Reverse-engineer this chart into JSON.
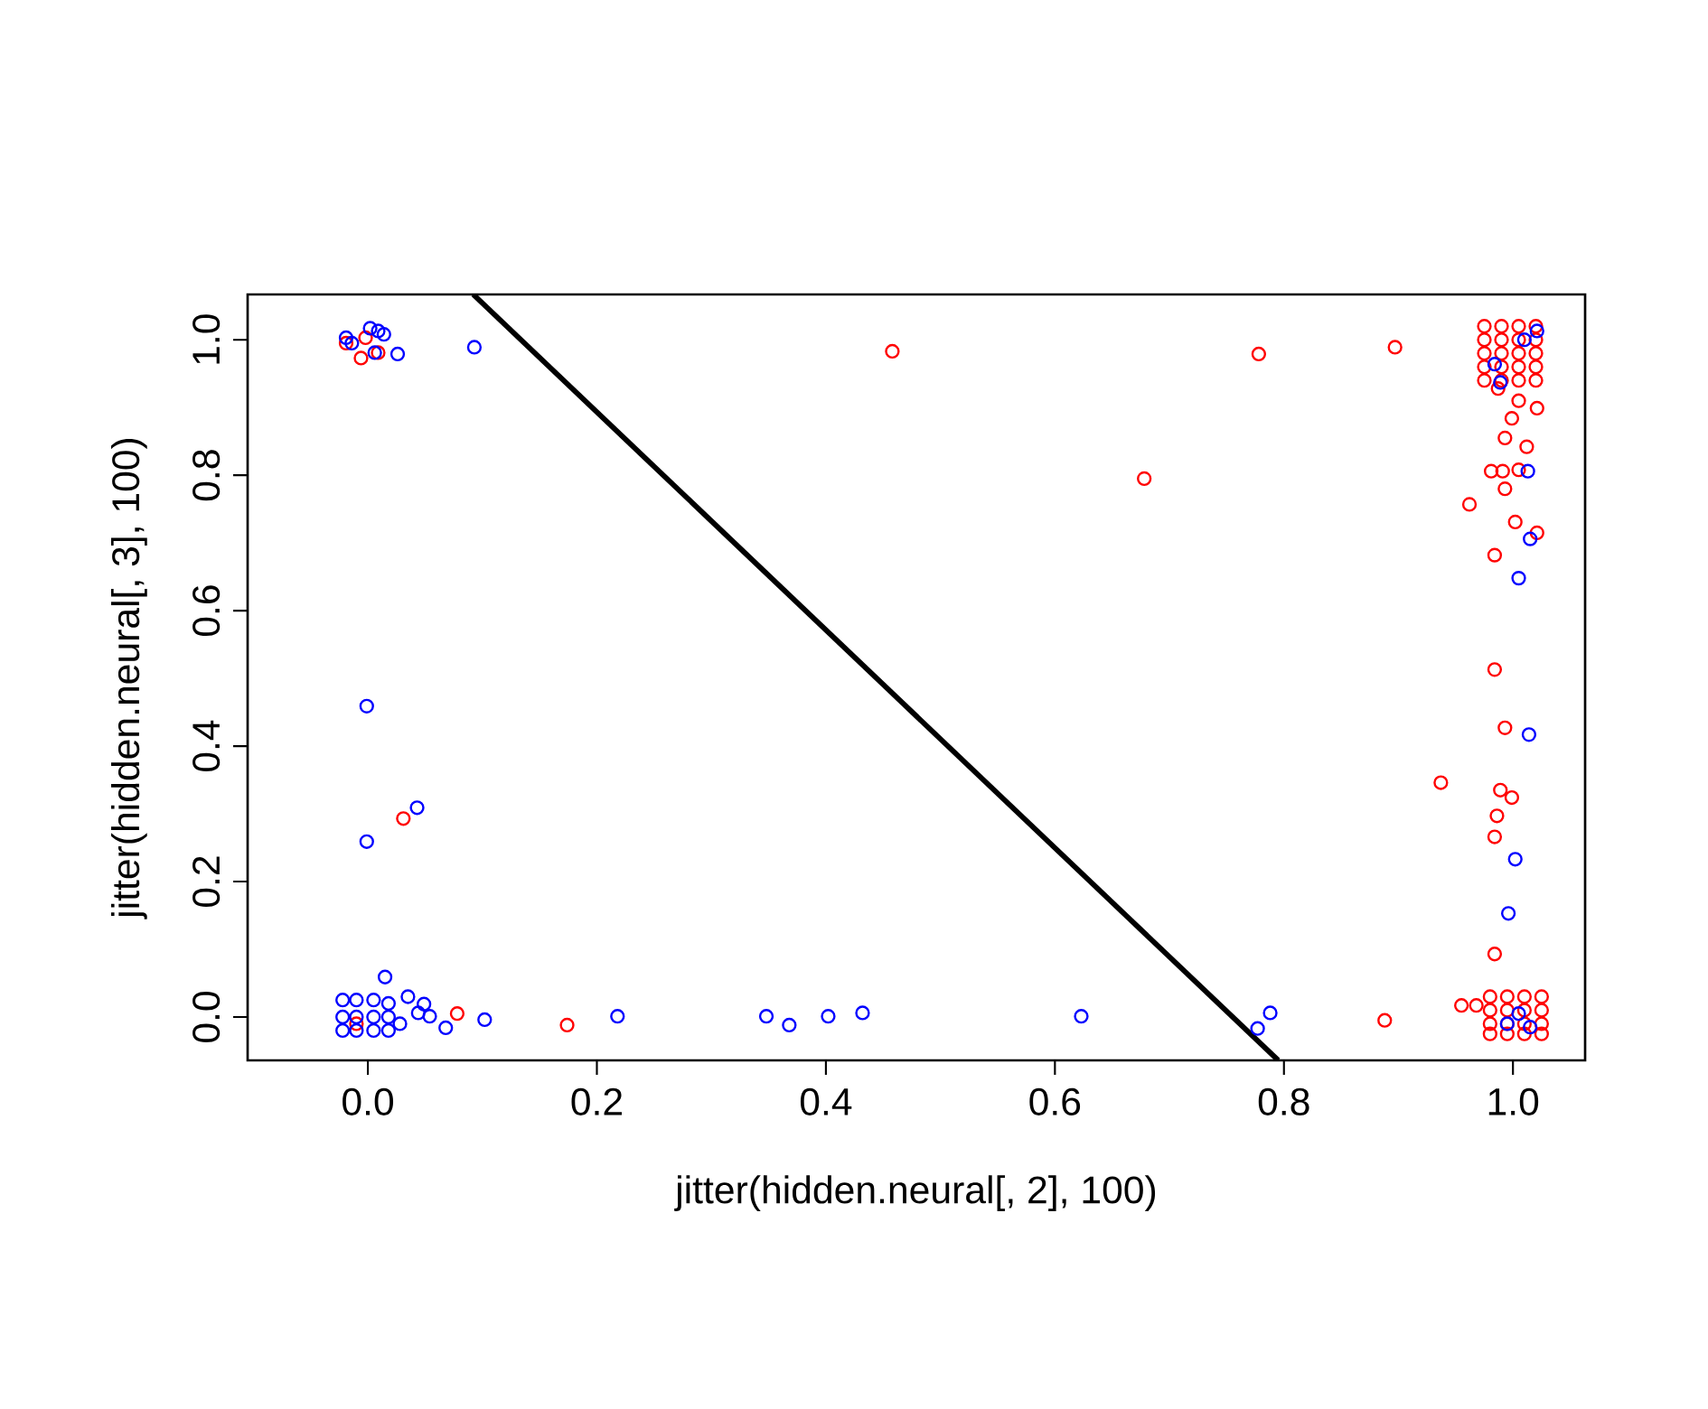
{
  "chart_data": {
    "type": "scatter",
    "xlabel": "jitter(hidden.neural[, 2], 100)",
    "ylabel": "jitter(hidden.neural[, 3], 100)",
    "xlim": [
      -0.105,
      1.063
    ],
    "ylim": [
      -0.064,
      1.067
    ],
    "xticks": [
      {
        "value": 0,
        "label": "0.0"
      },
      {
        "value": 0.2,
        "label": "0.2"
      },
      {
        "value": 0.4,
        "label": "0.4"
      },
      {
        "value": 0.6,
        "label": "0.6"
      },
      {
        "value": 0.8,
        "label": "0.8"
      },
      {
        "value": 1,
        "label": "1.0"
      }
    ],
    "yticks": [
      {
        "value": 0,
        "label": "0.0"
      },
      {
        "value": 0.2,
        "label": "0.2"
      },
      {
        "value": 0.4,
        "label": "0.4"
      },
      {
        "value": 0.6,
        "label": "0.6"
      },
      {
        "value": 0.8,
        "label": "0.8"
      },
      {
        "value": 1,
        "label": "1.0"
      }
    ],
    "marker": "circle",
    "series": [
      {
        "color": "#ff0000",
        "x": [
          -0.019,
          -0.006,
          0.009,
          -0.002,
          0.031,
          0.078,
          -0.01,
          0.174,
          0.458,
          0.778,
          0.678,
          0.897,
          0.888,
          0.975,
          0.99,
          1.005,
          1.02,
          0.975,
          0.99,
          1.005,
          1.02,
          0.975,
          0.99,
          1.005,
          1.02,
          0.975,
          0.99,
          1.005,
          1.02,
          0.975,
          0.99,
          1.005,
          1.02,
          0.98,
          0.995,
          1.01,
          1.025,
          0.98,
          0.995,
          1.01,
          1.025,
          0.98,
          0.995,
          1.01,
          1.025,
          0.98,
          0.995,
          1.01,
          1.025,
          1.021,
          0.999,
          0.993,
          1.012,
          0.981,
          0.991,
          1.005,
          0.993,
          0.962,
          1.002,
          1.021,
          0.984,
          0.987,
          1.005,
          0.984,
          0.993,
          0.937,
          0.989,
          0.999,
          0.986,
          0.984,
          0.984,
          0.955,
          0.968
        ],
        "values": [
          0.995,
          0.973,
          0.981,
          1.003,
          0.293,
          0.005,
          -0.01,
          -0.012,
          0.983,
          0.979,
          0.795,
          0.989,
          -0.005,
          1.02,
          1.02,
          1.02,
          1.02,
          1.0,
          1.0,
          1.0,
          1.0,
          0.98,
          0.98,
          0.98,
          0.98,
          0.96,
          0.96,
          0.96,
          0.96,
          0.94,
          0.94,
          0.94,
          0.94,
          0.03,
          0.03,
          0.03,
          0.03,
          0.01,
          0.01,
          0.01,
          0.01,
          -0.01,
          -0.01,
          -0.01,
          -0.01,
          -0.025,
          -0.025,
          -0.025,
          -0.025,
          0.899,
          0.884,
          0.855,
          0.842,
          0.806,
          0.806,
          0.808,
          0.78,
          0.757,
          0.731,
          0.715,
          0.682,
          0.928,
          0.91,
          0.513,
          0.427,
          0.346,
          0.335,
          0.324,
          0.297,
          0.266,
          0.093,
          0.017,
          0.017
        ]
      },
      {
        "color": "#0000ff",
        "x": [
          -0.019,
          -0.014,
          0.002,
          0.009,
          0.014,
          0.006,
          0.026,
          0.093,
          -0.001,
          0.043,
          -0.001,
          0.015,
          -0.022,
          -0.01,
          0.005,
          0.018,
          -0.022,
          -0.01,
          0.005,
          0.018,
          -0.022,
          -0.01,
          0.005,
          0.018,
          0.035,
          0.049,
          0.044,
          0.054,
          0.068,
          0.102,
          0.028,
          0.218,
          0.348,
          0.368,
          0.402,
          0.432,
          0.623,
          0.788,
          0.777,
          1.021,
          0.989,
          1.013,
          1.015,
          1.005,
          0.984,
          1.014,
          1.002,
          0.996,
          1.01,
          0.995,
          1.015,
          1.005
        ],
        "values": [
          1.003,
          0.995,
          1.017,
          1.013,
          1.008,
          0.981,
          0.979,
          0.989,
          0.459,
          0.309,
          0.259,
          0.059,
          0.025,
          0.025,
          0.025,
          0.02,
          0.0,
          0.0,
          0.0,
          0.0,
          -0.02,
          -0.02,
          -0.02,
          -0.02,
          0.03,
          0.019,
          0.006,
          0.001,
          -0.016,
          -0.004,
          -0.01,
          0.001,
          0.001,
          -0.012,
          0.001,
          0.006,
          0.001,
          0.006,
          -0.017,
          1.013,
          0.937,
          0.806,
          0.706,
          0.648,
          0.964,
          0.417,
          0.233,
          0.153,
          1.0,
          -0.01,
          -0.015,
          0.005
        ]
      },
      {
        "type": "line",
        "color": "#000000",
        "line_style": "solid",
        "marker": "none",
        "x": [
          0.092,
          0.795
        ],
        "values": [
          1.067,
          -0.064
        ]
      }
    ]
  }
}
